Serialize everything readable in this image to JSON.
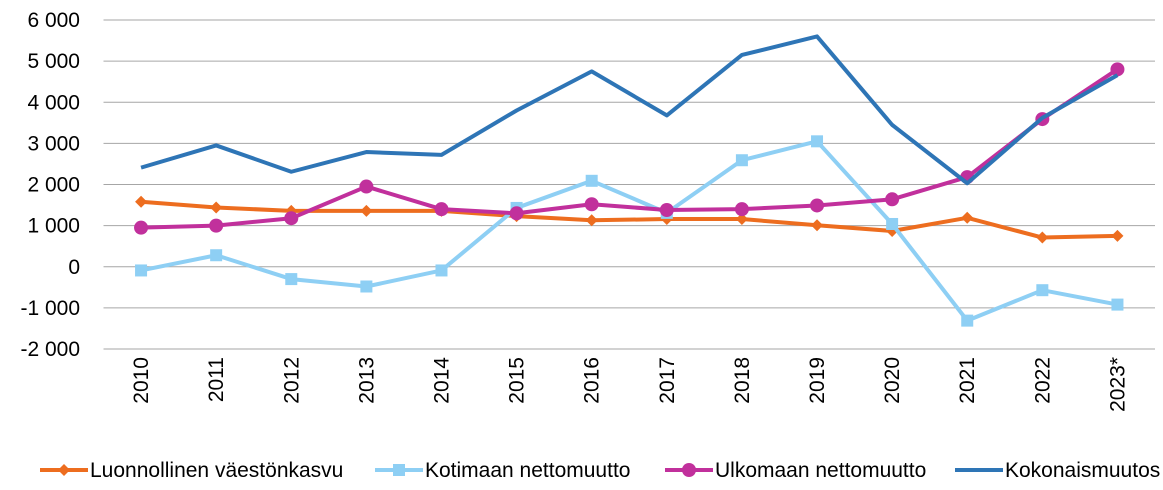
{
  "chart_data": {
    "type": "line",
    "categories": [
      "2010",
      "2011",
      "2012",
      "2013",
      "2014",
      "2015",
      "2016",
      "2017",
      "2018",
      "2019",
      "2020",
      "2021",
      "2022",
      "2023*"
    ],
    "series": [
      {
        "name": "Luonnollinen väestönkasvu",
        "color": "#ed6d1f",
        "marker": "diamond",
        "values": [
          1580,
          1440,
          1360,
          1360,
          1360,
          1230,
          1130,
          1160,
          1160,
          1010,
          870,
          1190,
          710,
          750
        ]
      },
      {
        "name": "Kotimaan nettomuutto",
        "color": "#8ecff4",
        "marker": "square",
        "values": [
          -90,
          280,
          -300,
          -480,
          -90,
          1430,
          2090,
          1310,
          2590,
          3050,
          1040,
          -1310,
          -570,
          -920
        ]
      },
      {
        "name": "Ulkomaan nettomuutto",
        "color": "#c1309c",
        "marker": "circle",
        "values": [
          950,
          1000,
          1180,
          1950,
          1400,
          1300,
          1520,
          1380,
          1400,
          1490,
          1640,
          2180,
          3590,
          4800
        ]
      },
      {
        "name": "Kokonaismuutos",
        "color": "#2e75b6",
        "marker": "none",
        "values": [
          2410,
          2950,
          2310,
          2790,
          2720,
          3800,
          4750,
          3680,
          5150,
          5600,
          3450,
          2030,
          3620,
          4660
        ]
      }
    ],
    "ylim": [
      -2000,
      6000
    ],
    "yticks": [
      {
        "value": -2000,
        "label": "-2 000"
      },
      {
        "value": -1000,
        "label": "-1 000"
      },
      0,
      {
        "value": 1000,
        "label": "1 000"
      },
      {
        "value": 2000,
        "label": "2 000"
      },
      {
        "value": 3000,
        "label": "3 000"
      },
      {
        "value": 4000,
        "label": "4 000"
      },
      {
        "value": 5000,
        "label": "5 000"
      },
      {
        "value": 6000,
        "label": "6 000"
      }
    ],
    "grid": true,
    "legend": "bottom"
  }
}
